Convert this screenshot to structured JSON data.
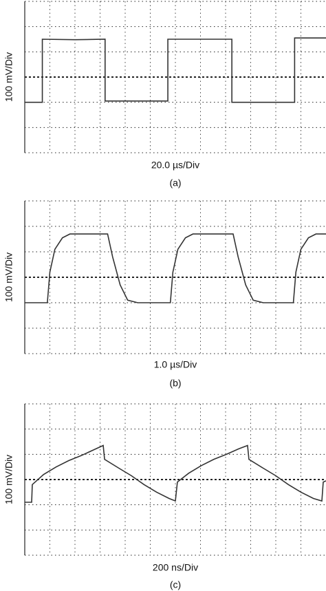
{
  "chart_data": [
    {
      "type": "line",
      "y_label": "100 mV/Div",
      "x_label": "20.0 µs/Div",
      "caption": "(a)",
      "x": [
        0,
        14,
        14,
        40,
        64,
        64,
        114,
        114,
        165,
        165,
        215,
        215,
        240
      ],
      "series": [
        {
          "color": "#333333",
          "values": [
            -100,
            -100,
            150,
            148,
            150,
            -95,
            -95,
            150,
            150,
            -100,
            -100,
            155,
            155
          ]
        }
      ],
      "xlim": [
        0,
        240
      ],
      "ylim": [
        -300,
        300
      ]
    },
    {
      "type": "line",
      "y_label": "100 mV/Div",
      "x_label": "1.0 µs/Div",
      "caption": "(b)",
      "x": [
        0,
        0.9,
        1.0,
        1.2,
        1.5,
        1.8,
        3.3,
        3.5,
        3.8,
        4.1,
        4.5,
        5.8,
        5.9,
        6.1,
        6.4,
        6.7,
        8.3,
        8.5,
        8.8,
        9.1,
        9.5,
        10.7,
        10.8,
        11.0,
        11.3,
        11.6,
        12
      ],
      "series": [
        {
          "color": "#333333",
          "values": [
            -100,
            -100,
            20,
            110,
            155,
            170,
            170,
            80,
            -30,
            -90,
            -100,
            -100,
            20,
            110,
            155,
            170,
            170,
            80,
            -30,
            -90,
            -100,
            -100,
            20,
            110,
            155,
            170,
            170
          ]
        }
      ],
      "xlim": [
        0,
        12
      ],
      "ylim": [
        -300,
        300
      ]
    },
    {
      "type": "line",
      "y_label": "100 mV/Div",
      "x_label": "200 ns/Div",
      "caption": "(c)",
      "x": [
        0,
        55,
        60,
        150,
        250,
        350,
        450,
        550,
        625,
        636,
        750,
        850,
        950,
        1050,
        1150,
        1200,
        1216,
        1306,
        1406,
        1506,
        1606,
        1706,
        1775,
        1786,
        1900,
        2000,
        2100,
        2200,
        2300,
        2367,
        2378,
        2400
      ],
      "series": [
        {
          "color": "#333333",
          "values": [
            -90,
            -90,
            -20,
            20,
            50,
            75,
            95,
            118,
            135,
            80,
            45,
            15,
            -20,
            -50,
            -75,
            -85,
            -10,
            25,
            55,
            80,
            100,
            122,
            135,
            80,
            45,
            15,
            -20,
            -50,
            -75,
            -85,
            -10,
            -5
          ]
        }
      ],
      "xlim": [
        0,
        2400
      ],
      "ylim": [
        -300,
        300
      ]
    }
  ]
}
